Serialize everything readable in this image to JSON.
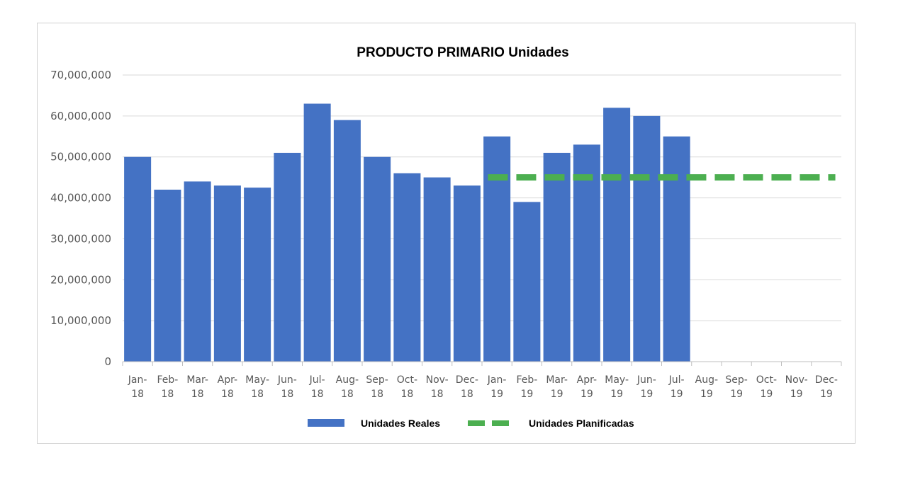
{
  "chart_data": {
    "type": "bar",
    "title": "PRODUCTO PRIMARIO Unidades",
    "xlabel": "",
    "ylabel": "",
    "ylim": [
      0,
      70000000
    ],
    "yticks": [
      "0",
      "10,000,000",
      "20,000,000",
      "30,000,000",
      "40,000,000",
      "50,000,000",
      "60,000,000",
      "70,000,000"
    ],
    "ytick_values": [
      0,
      10000000,
      20000000,
      30000000,
      40000000,
      50000000,
      60000000,
      70000000
    ],
    "categories": [
      [
        "Jan-",
        "18"
      ],
      [
        "Feb-",
        "18"
      ],
      [
        "Mar-",
        "18"
      ],
      [
        "Apr-",
        "18"
      ],
      [
        "May-",
        "18"
      ],
      [
        "Jun-",
        "18"
      ],
      [
        "Jul-",
        "18"
      ],
      [
        "Aug-",
        "18"
      ],
      [
        "Sep-",
        "18"
      ],
      [
        "Oct-",
        "18"
      ],
      [
        "Nov-",
        "18"
      ],
      [
        "Dec-",
        "18"
      ],
      [
        "Jan-",
        "19"
      ],
      [
        "Feb-",
        "19"
      ],
      [
        "Mar-",
        "19"
      ],
      [
        "Apr-",
        "19"
      ],
      [
        "May-",
        "19"
      ],
      [
        "Jun-",
        "19"
      ],
      [
        "Jul-",
        "19"
      ],
      [
        "Aug-",
        "19"
      ],
      [
        "Sep-",
        "19"
      ],
      [
        "Oct-",
        "19"
      ],
      [
        "Nov-",
        "19"
      ],
      [
        "Dec-",
        "19"
      ]
    ],
    "grid": true,
    "legend_position": "bottom",
    "series": [
      {
        "name": "Unidades Reales",
        "type": "bar",
        "color": "#4472c4",
        "values": [
          50000000,
          42000000,
          44000000,
          43000000,
          42500000,
          51000000,
          63000000,
          59000000,
          50000000,
          46000000,
          45000000,
          43000000,
          55000000,
          39000000,
          51000000,
          53000000,
          62000000,
          60000000,
          55000000,
          null,
          null,
          null,
          null,
          null
        ]
      },
      {
        "name": "Unidades Planificadas",
        "type": "line",
        "style": "dashed",
        "color": "#4caf50",
        "values": [
          null,
          null,
          null,
          null,
          null,
          null,
          null,
          null,
          null,
          null,
          null,
          null,
          45000000,
          45000000,
          45000000,
          45000000,
          45000000,
          45000000,
          45000000,
          45000000,
          45000000,
          45000000,
          45000000,
          45000000
        ]
      }
    ]
  }
}
